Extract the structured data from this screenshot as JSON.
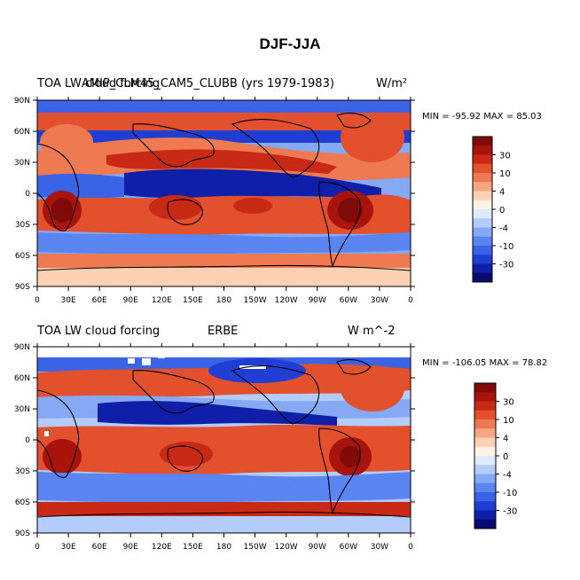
{
  "title": "DJF-JJA",
  "colors": [
    "#0a0a6e",
    "#0f1fa8",
    "#1f3fd4",
    "#3b63e6",
    "#5a84ef",
    "#85a9f5",
    "#b3ccfa",
    "#dde9fd",
    "#fdf2e6",
    "#fcd1b3",
    "#f7a882",
    "#ef7a52",
    "#e2502d",
    "#c82a16",
    "#a8130c",
    "#7f0a08"
  ],
  "map_x_ticks": [
    "0",
    "30E",
    "60E",
    "90E",
    "120E",
    "150E",
    "180",
    "150W",
    "120W",
    "90W",
    "60W",
    "30W",
    "0"
  ],
  "map_y_ticks": [
    "90N",
    "60N",
    "30N",
    "0",
    "30S",
    "60S",
    "90S"
  ],
  "panels": [
    {
      "left_label": "TOA LW cloud forcing",
      "center_label": "AMIP_CLM45_CAM5_CLUBB (yrs 1979-1983)",
      "right_label": "W/m²",
      "stats": "MIN = -95.92 MAX =  85.03",
      "colorbar_labels": [
        "30",
        "10",
        "4",
        "0",
        "-4",
        "-10",
        "-30"
      ]
    },
    {
      "left_label": "TOA LW cloud forcing",
      "center_label": "ERBE",
      "right_label": "W m^-2",
      "stats": "MIN = -106.05 MAX =  78.82",
      "colorbar_labels": [
        "30",
        "10",
        "4",
        "0",
        "-4",
        "-10",
        "-30"
      ]
    }
  ]
}
